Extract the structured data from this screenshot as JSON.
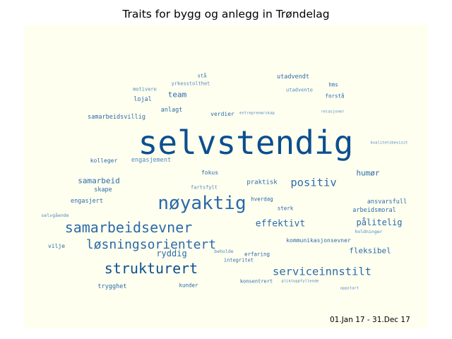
{
  "title": "Traits for bygg og anlegg in Trøndelag",
  "date_range": "01.Jan 17 - 31.Dec 17",
  "colors": {
    "panel_bg": "#fffff0",
    "word_dark": "#0b4f8f",
    "word_mid": "#2a6aa8",
    "word_light": "#4d86bd"
  },
  "words": [
    "stå",
    "yrkesstolthet",
    "utadvendt",
    "motivere",
    "hms",
    "utadvente",
    "team",
    "lojal",
    "forstå",
    "anlagt",
    "verdier",
    "entreprenørskap",
    "relasjoner",
    "samarbeidsvillig",
    "selvstendig",
    "kvalitetsbevisst",
    "kolleger",
    "engasjement",
    "humør",
    "samarbeid",
    "fokus",
    "positiv",
    "praktisk",
    "skape",
    "nøyaktig",
    "fartsfylt",
    "ansvarsfull",
    "hverdag",
    "engasjert",
    "sterk",
    "arbeidsmoral",
    "selvgående",
    "pålitelig",
    "samarbeidsevner",
    "effektivt",
    "holdninger",
    "løsningsorientert",
    "kommunikasjonsevner",
    "vilje",
    "fleksibel",
    "ryddig",
    "beholde",
    "erfaring",
    "integritet",
    "strukturert",
    "serviceinnstilt",
    "trygghet",
    "kunder",
    "konsentrert",
    "pliktoppfyllende",
    "oppstart"
  ]
}
